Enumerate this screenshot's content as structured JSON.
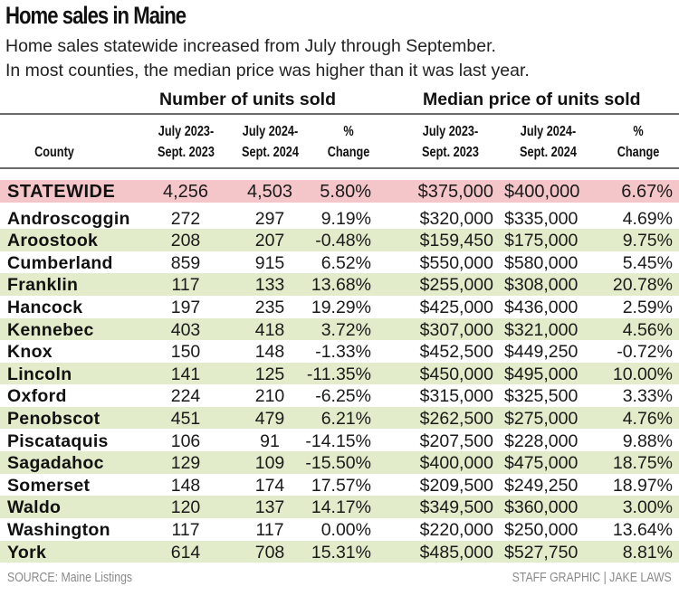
{
  "chart_data": {
    "type": "table",
    "title": "Home sales in Maine",
    "subtitle": [
      "Home sales statewide increased from July through September.",
      "In most counties, the median price was higher than it was last year."
    ],
    "column_groups": [
      "Number of units sold",
      "Median price of units sold"
    ],
    "columns": [
      [
        "County"
      ],
      [
        "July 2023-",
        "Sept. 2023"
      ],
      [
        "July 2024-",
        "Sept. 2024"
      ],
      [
        "%",
        "Change"
      ],
      [
        "July 2023-",
        "Sept. 2023"
      ],
      [
        "July 2024-",
        "Sept. 2024"
      ],
      [
        "%",
        "Change"
      ]
    ],
    "statewide": [
      "STATEWIDE",
      "4,256",
      "4,503",
      "5.80%",
      "$375,000",
      "$400,000",
      "6.67%"
    ],
    "rows": [
      [
        "Androscoggin",
        "272",
        "297",
        "9.19%",
        "$320,000",
        "$335,000",
        "4.69%"
      ],
      [
        "Aroostook",
        "208",
        "207",
        "-0.48%",
        "$159,450",
        "$175,000",
        "9.75%"
      ],
      [
        "Cumberland",
        "859",
        "915",
        "6.52%",
        "$550,000",
        "$580,000",
        "5.45%"
      ],
      [
        "Franklin",
        "117",
        "133",
        "13.68%",
        "$255,000",
        "$308,000",
        "20.78%"
      ],
      [
        "Hancock",
        "197",
        "235",
        "19.29%",
        "$425,000",
        "$436,000",
        "2.59%"
      ],
      [
        "Kennebec",
        "403",
        "418",
        "3.72%",
        "$307,000",
        "$321,000",
        "4.56%"
      ],
      [
        "Knox",
        "150",
        "148",
        "-1.33%",
        "$452,500",
        "$449,250",
        "-0.72%"
      ],
      [
        "Lincoln",
        "141",
        "125",
        "-11.35%",
        "$450,000",
        "$495,000",
        "10.00%"
      ],
      [
        "Oxford",
        "224",
        "210",
        "-6.25%",
        "$315,000",
        "$325,500",
        "3.33%"
      ],
      [
        "Penobscot",
        "451",
        "479",
        "6.21%",
        "$262,500",
        "$275,000",
        "4.76%"
      ],
      [
        "Piscataquis",
        "106",
        "91",
        "-14.15%",
        "$207,500",
        "$228,000",
        "9.88%"
      ],
      [
        "Sagadahoc",
        "129",
        "109",
        "-15.50%",
        "$400,000",
        "$475,000",
        "18.75%"
      ],
      [
        "Somerset",
        "148",
        "174",
        "17.57%",
        "$209,500",
        "$249,250",
        "18.97%"
      ],
      [
        "Waldo",
        "120",
        "137",
        "14.17%",
        "$349,500",
        "$360,000",
        "3.00%"
      ],
      [
        "Washington",
        "117",
        "117",
        "0.00%",
        "$220,000",
        "$250,000",
        "13.64%"
      ],
      [
        "York",
        "614",
        "708",
        "15.31%",
        "$485,000",
        "$527,750",
        "8.81%"
      ]
    ],
    "source": "SOURCE: Maine Listings",
    "credit": "STAFF GRAPHIC | JAKE LAWS",
    "colors": {
      "statewide_highlight": "#f5c6c9",
      "alternate_row": "#e2ecca",
      "rule": "#6b6b6b"
    }
  }
}
